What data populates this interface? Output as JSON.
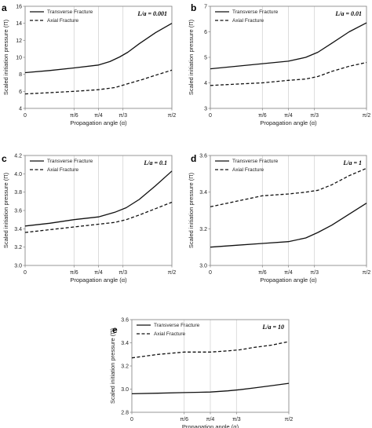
{
  "chart_data": [
    {
      "letter": "a",
      "type": "line",
      "ratio_label": "L/a = 0.001",
      "xlabel": "Propagation angle (α)",
      "ylabel": "Scaled initiation pressure (Π)",
      "ylim": [
        4,
        16
      ],
      "yticks": [
        "4",
        "6",
        "8",
        "10",
        "12",
        "14",
        "16"
      ],
      "xlim": [
        0,
        90
      ],
      "xtick_values": [
        0,
        30,
        45,
        60,
        90
      ],
      "xticks": [
        "0",
        "π/6",
        "π/4",
        "π/3",
        "π/2"
      ],
      "grid": "vertical",
      "legend": "top-left",
      "series": [
        {
          "name": "Transverse Fracture",
          "style": "solid",
          "x": [
            0,
            15,
            30,
            45,
            52,
            58,
            63,
            70,
            80,
            90
          ],
          "y": [
            8.2,
            8.45,
            8.75,
            9.1,
            9.5,
            10.05,
            10.6,
            11.6,
            12.9,
            14.0
          ]
        },
        {
          "name": "Axial Fracture",
          "style": "dashed",
          "x": [
            0,
            15,
            30,
            45,
            55,
            63,
            72,
            80,
            90
          ],
          "y": [
            5.7,
            5.85,
            6.0,
            6.2,
            6.45,
            6.9,
            7.4,
            7.9,
            8.5
          ]
        }
      ]
    },
    {
      "letter": "b",
      "type": "line",
      "ratio_label": "L/a = 0.01",
      "xlabel": "Propagation angle (α)",
      "ylabel": "Scaled initiation pressure (Π)",
      "ylim": [
        3,
        7
      ],
      "yticks": [
        "3",
        "4",
        "5",
        "6",
        "7"
      ],
      "xlim": [
        0,
        90
      ],
      "xtick_values": [
        0,
        30,
        45,
        60,
        90
      ],
      "xticks": [
        "0",
        "π/6",
        "π/4",
        "π/3",
        "π/2"
      ],
      "grid": "vertical",
      "legend": "top-left",
      "series": [
        {
          "name": "Transverse Fracture",
          "style": "solid",
          "x": [
            0,
            15,
            30,
            45,
            55,
            62,
            70,
            80,
            90
          ],
          "y": [
            4.55,
            4.65,
            4.75,
            4.85,
            5.0,
            5.2,
            5.55,
            6.0,
            6.35
          ]
        },
        {
          "name": "Axial Fracture",
          "style": "dashed",
          "x": [
            0,
            15,
            30,
            45,
            55,
            62,
            70,
            80,
            90
          ],
          "y": [
            3.9,
            3.95,
            4.0,
            4.1,
            4.15,
            4.25,
            4.45,
            4.65,
            4.8
          ]
        }
      ]
    },
    {
      "letter": "c",
      "type": "line",
      "ratio_label": "L/a = 0.1",
      "xlabel": "Propagation angle (α)",
      "ylabel": "Scaled initiation pressure (Π)",
      "ylim": [
        3.0,
        4.2
      ],
      "yticks": [
        "3.0",
        "3.2",
        "3.4",
        "3.6",
        "3.8",
        "4.0",
        "4.2"
      ],
      "xlim": [
        0,
        90
      ],
      "xtick_values": [
        0,
        30,
        45,
        60,
        90
      ],
      "xticks": [
        "0",
        "π/6",
        "π/4",
        "π/3",
        "π/2"
      ],
      "grid": "vertical",
      "legend": "top-left",
      "series": [
        {
          "name": "Transverse Fracture",
          "style": "solid",
          "x": [
            0,
            15,
            30,
            45,
            55,
            62,
            70,
            80,
            90
          ],
          "y": [
            3.43,
            3.46,
            3.5,
            3.53,
            3.58,
            3.63,
            3.72,
            3.87,
            4.03
          ]
        },
        {
          "name": "Axial Fracture",
          "style": "dashed",
          "x": [
            0,
            15,
            30,
            45,
            55,
            62,
            70,
            80,
            90
          ],
          "y": [
            3.36,
            3.39,
            3.42,
            3.45,
            3.47,
            3.5,
            3.55,
            3.62,
            3.69
          ]
        }
      ]
    },
    {
      "letter": "d",
      "type": "line",
      "ratio_label": "L/a = 1",
      "xlabel": "Propagation angle (α)",
      "ylabel": "Scaled initiation pressure (Π)",
      "ylim": [
        3.0,
        3.6
      ],
      "yticks": [
        "3.0",
        "3.2",
        "3.4",
        "3.6"
      ],
      "xlim": [
        0,
        90
      ],
      "xtick_values": [
        0,
        30,
        45,
        60,
        90
      ],
      "xticks": [
        "0",
        "π/6",
        "π/4",
        "π/3",
        "π/2"
      ],
      "grid": "vertical",
      "legend": "top-left",
      "series": [
        {
          "name": "Transverse Fracture",
          "style": "solid",
          "x": [
            0,
            15,
            30,
            45,
            55,
            62,
            70,
            80,
            90
          ],
          "y": [
            3.1,
            3.11,
            3.12,
            3.13,
            3.15,
            3.18,
            3.22,
            3.28,
            3.34
          ]
        },
        {
          "name": "Axial Fracture",
          "style": "dashed",
          "x": [
            0,
            15,
            30,
            45,
            55,
            62,
            70,
            80,
            90
          ],
          "y": [
            3.32,
            3.35,
            3.38,
            3.39,
            3.4,
            3.41,
            3.44,
            3.49,
            3.53
          ]
        }
      ]
    },
    {
      "letter": "e",
      "type": "line",
      "ratio_label": "L/a = 10",
      "xlabel": "Propagation angle (α)",
      "ylabel": "Scaled initiation pressure (Π)",
      "ylim": [
        2.8,
        3.6
      ],
      "yticks": [
        "2.8",
        "3.0",
        "3.2",
        "3.4",
        "3.6"
      ],
      "xlim": [
        0,
        90
      ],
      "xtick_values": [
        0,
        30,
        45,
        60,
        90
      ],
      "xticks": [
        "0",
        "π/6",
        "π/4",
        "π/3",
        "π/2"
      ],
      "grid": "vertical",
      "legend": "top-left",
      "series": [
        {
          "name": "Transverse Fracture",
          "style": "solid",
          "x": [
            0,
            15,
            30,
            45,
            55,
            62,
            70,
            80,
            90
          ],
          "y": [
            2.96,
            2.965,
            2.97,
            2.975,
            2.985,
            2.995,
            3.01,
            3.03,
            3.05
          ]
        },
        {
          "name": "Axial Fracture",
          "style": "dashed",
          "x": [
            0,
            15,
            30,
            45,
            55,
            62,
            70,
            80,
            90
          ],
          "y": [
            3.27,
            3.3,
            3.32,
            3.32,
            3.33,
            3.34,
            3.36,
            3.38,
            3.41
          ]
        }
      ]
    }
  ]
}
